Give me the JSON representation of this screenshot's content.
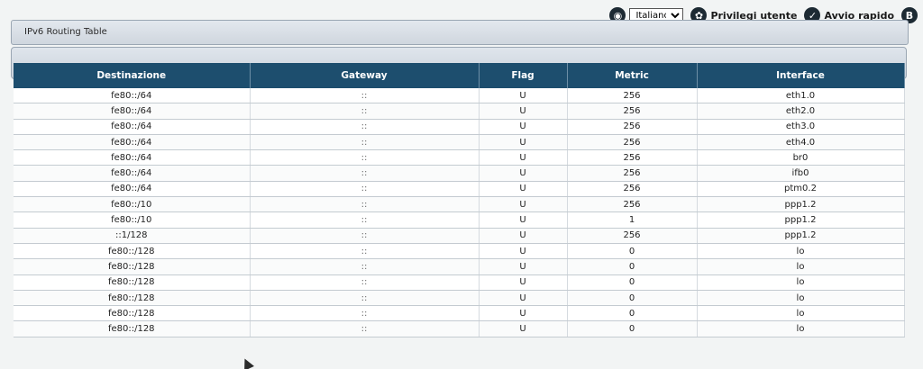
{
  "topbar": {
    "language_selected": "Italiano",
    "privileges_label": "Privilegi utente",
    "quick_start_label": "Avvio rapido",
    "icons": [
      "globe-icon",
      "user-privileges-icon",
      "quick-start-icon",
      "help-icon"
    ]
  },
  "page": {
    "title": "IPv6 Routing Table"
  },
  "table": {
    "headers": [
      "Destinazione",
      "Gateway",
      "Flag",
      "Metric",
      "Interface"
    ],
    "rows": [
      [
        "fe80::/64",
        "::",
        "U",
        "256",
        "eth1.0"
      ],
      [
        "fe80::/64",
        "::",
        "U",
        "256",
        "eth2.0"
      ],
      [
        "fe80::/64",
        "::",
        "U",
        "256",
        "eth3.0"
      ],
      [
        "fe80::/64",
        "::",
        "U",
        "256",
        "eth4.0"
      ],
      [
        "fe80::/64",
        "::",
        "U",
        "256",
        "br0"
      ],
      [
        "fe80::/64",
        "::",
        "U",
        "256",
        "ifb0"
      ],
      [
        "fe80::/64",
        "::",
        "U",
        "256",
        "ptm0.2"
      ],
      [
        "fe80::/10",
        "::",
        "U",
        "256",
        "ppp1.2"
      ],
      [
        "fe80::/10",
        "::",
        "U",
        "1",
        "ppp1.2"
      ],
      [
        "::1/128",
        "::",
        "U",
        "256",
        "ppp1.2"
      ],
      [
        "fe80::/128",
        "::",
        "U",
        "0",
        "lo"
      ],
      [
        "fe80::/128",
        "::",
        "U",
        "0",
        "lo"
      ],
      [
        "fe80::/128",
        "::",
        "U",
        "0",
        "lo"
      ],
      [
        "fe80::/128",
        "::",
        "U",
        "0",
        "lo"
      ],
      [
        "fe80::/128",
        "::",
        "U",
        "0",
        "lo"
      ],
      [
        "fe80::/128",
        "::",
        "U",
        "0",
        "lo"
      ]
    ]
  },
  "colors": {
    "header_bg": "#1d4e6e",
    "panel_bg": "#d6dde5"
  }
}
